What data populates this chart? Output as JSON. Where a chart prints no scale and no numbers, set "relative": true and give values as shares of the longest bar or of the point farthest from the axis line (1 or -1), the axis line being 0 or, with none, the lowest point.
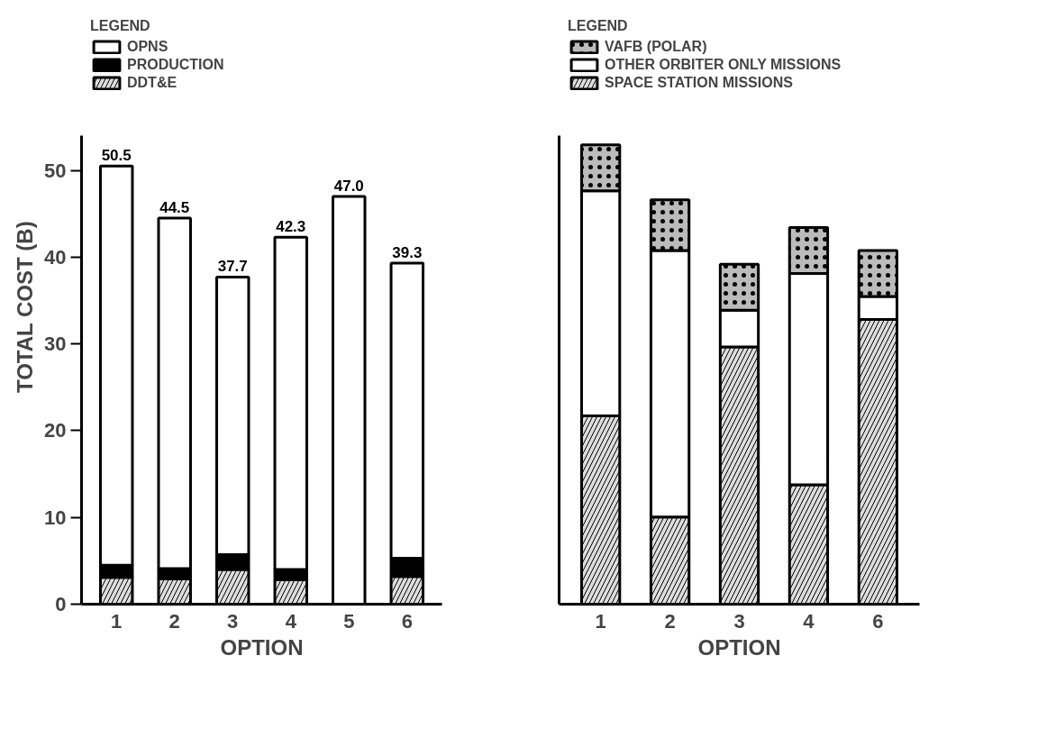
{
  "chart_data": [
    {
      "type": "bar",
      "stacked": true,
      "legend": "top",
      "legend_title": "LEGEND",
      "xlabel": "OPTION",
      "ylabel": "TOTAL COST (B)",
      "grid": false,
      "categories": [
        "1",
        "2",
        "3",
        "4",
        "5",
        "6"
      ],
      "ylim": [
        0,
        54
      ],
      "yticks": [
        0,
        10,
        20,
        30,
        40,
        50
      ],
      "series": [
        {
          "name": "DDT&E",
          "color": "#dddddd",
          "values": [
            3.1,
            2.9,
            4.0,
            2.8,
            0,
            3.2
          ]
        },
        {
          "name": "PRODUCTION",
          "color": "#000000",
          "values": [
            1.4,
            1.2,
            1.7,
            1.2,
            0,
            2.1
          ]
        },
        {
          "name": "OPNS",
          "color": "#ffffff",
          "values": [
            46.0,
            40.4,
            32.0,
            38.3,
            47.0,
            34.0
          ]
        }
      ],
      "totals": [
        "50.5",
        "44.5",
        "37.7",
        "42.3",
        "47.0",
        "39.3"
      ]
    },
    {
      "type": "bar",
      "stacked": true,
      "relative": true,
      "legend": "top",
      "legend_title": "LEGEND",
      "xlabel": "OPTION",
      "grid": false,
      "categories": [
        "1",
        "2",
        "3",
        "4",
        "6"
      ],
      "series": [
        {
          "name": "SPACE STATION MISSIONS",
          "color": "#dddddd",
          "values": [
            0.41,
            0.19,
            0.56,
            0.26,
            0.62
          ]
        },
        {
          "name": "OTHER ORBITER ONLY MISSIONS",
          "color": "#ffffff",
          "values": [
            0.49,
            0.58,
            0.08,
            0.46,
            0.05
          ]
        },
        {
          "name": "VAFB (POLAR)",
          "color": "#bbbbbb",
          "values": [
            0.1,
            0.11,
            0.1,
            0.1,
            0.1
          ]
        }
      ]
    }
  ]
}
